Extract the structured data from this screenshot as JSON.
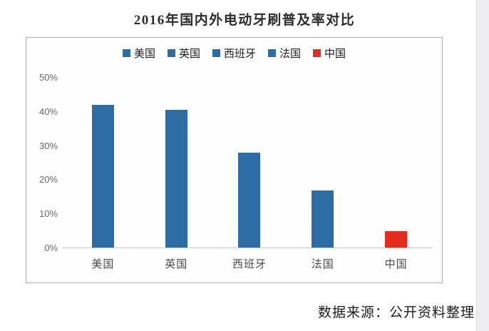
{
  "title": "2016年国内外电动牙刷普及率对比",
  "source": "数据来源：公开资料整理",
  "colors": {
    "bar_blue": "#2E6DA4",
    "bar_red": "#E32C1E",
    "axis_line": "#c7c7c9",
    "frame_border": "#aeaeae",
    "tick_text": "#6a6a6a"
  },
  "chart_data": {
    "type": "bar",
    "title": "2016年国内外电动牙刷普及率对比",
    "categories": [
      "美国",
      "英国",
      "西班牙",
      "法国",
      "中国"
    ],
    "values": [
      42,
      40.5,
      28,
      17,
      5
    ],
    "unit": "%",
    "xlabel": "",
    "ylabel": "",
    "ylim": [
      0,
      50
    ],
    "yticks": [
      "50%",
      "40%",
      "30%",
      "20%",
      "10%",
      "0%"
    ],
    "ytick_values": [
      50,
      40,
      30,
      20,
      10,
      0
    ],
    "grid": false,
    "legend_position": "top-center",
    "legend": [
      {
        "label": "美国",
        "color": "#2E6DA4"
      },
      {
        "label": "英国",
        "color": "#2E6DA4"
      },
      {
        "label": "西班牙",
        "color": "#2E6DA4"
      },
      {
        "label": "法国",
        "color": "#2E6DA4"
      },
      {
        "label": "中国",
        "color": "#E32C1E"
      }
    ],
    "bar_colors": [
      "#2E6DA4",
      "#2E6DA4",
      "#2E6DA4",
      "#2E6DA4",
      "#E32C1E"
    ]
  }
}
